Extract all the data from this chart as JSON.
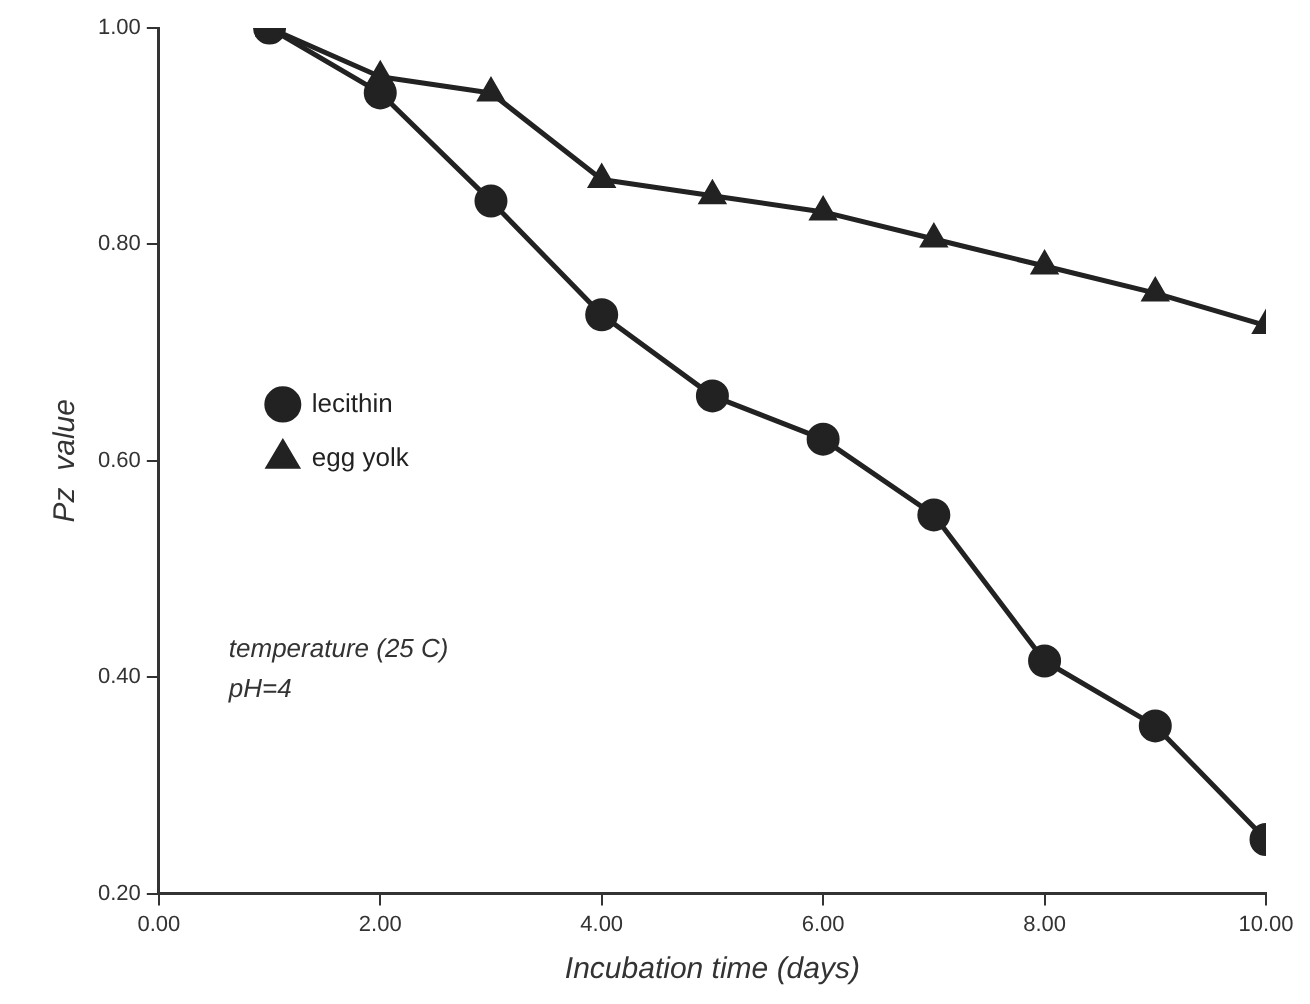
{
  "chart_data": {
    "type": "line",
    "xlabel": "Incubation time (days)",
    "ylabel": "Pz  value",
    "x": [
      1,
      2,
      3,
      4,
      5,
      6,
      7,
      8,
      9,
      10
    ],
    "series": [
      {
        "name": "lecithin",
        "color": "#222222",
        "marker": "circle",
        "values": [
          1.0,
          0.94,
          0.84,
          0.735,
          0.66,
          0.62,
          0.55,
          0.415,
          0.355,
          0.25
        ]
      },
      {
        "name": "egg yolk",
        "color": "#222222",
        "marker": "triangle",
        "values": [
          1.0,
          0.955,
          0.94,
          0.86,
          0.845,
          0.83,
          0.805,
          0.78,
          0.755,
          0.725
        ]
      }
    ],
    "xlim": [
      0,
      10
    ],
    "xticks": [
      {
        "value": 0,
        "label": "0.00"
      },
      {
        "value": 2,
        "label": "2.00"
      },
      {
        "value": 4,
        "label": "4.00"
      },
      {
        "value": 6,
        "label": "6.00"
      },
      {
        "value": 8,
        "label": "8.00"
      },
      {
        "value": 10,
        "label": "10.00"
      }
    ],
    "ylim": [
      0.2,
      1.0
    ],
    "yticks": [
      {
        "value": 0.2,
        "label": "0.20"
      },
      {
        "value": 0.4,
        "label": "0.40"
      },
      {
        "value": 0.6,
        "label": "0.60"
      },
      {
        "value": 0.8,
        "label": "0.80"
      },
      {
        "value": 1.0,
        "label": "1.00"
      }
    ],
    "grid": false,
    "legend": "left",
    "line_style": "solid",
    "annotations": [
      "temperature (25 C)",
      "pH=4"
    ]
  }
}
